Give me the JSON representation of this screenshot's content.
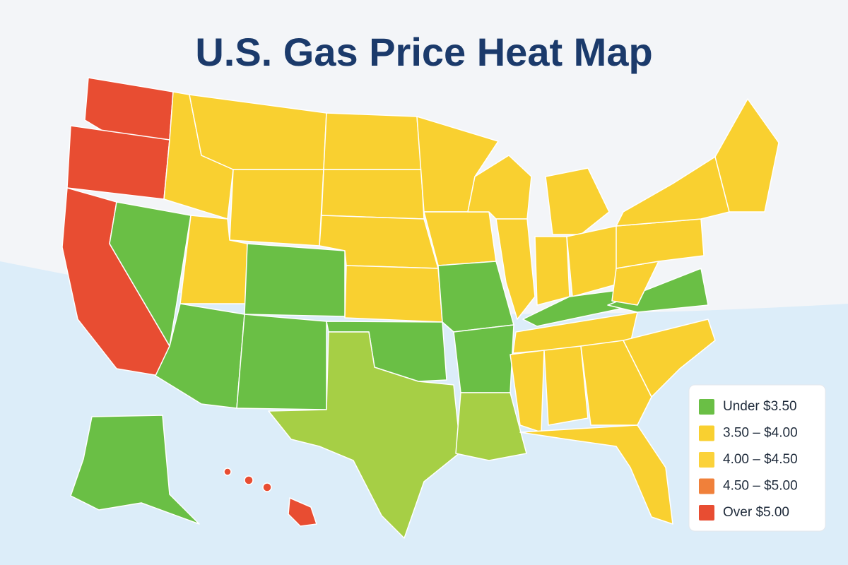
{
  "title": "U.S. Gas Price Heat Map",
  "legend": [
    {
      "label": "Under $3.50",
      "color": "#6abf45"
    },
    {
      "label": "3.50 – $4.00",
      "color": "#f9d030"
    },
    {
      "label": "4.00 – $4.50",
      "color": "#fbd23a"
    },
    {
      "label": "4.50 – $5.00",
      "color": "#f0803a"
    },
    {
      "label": "Over $5.00",
      "color": "#e84d32"
    }
  ]
}
